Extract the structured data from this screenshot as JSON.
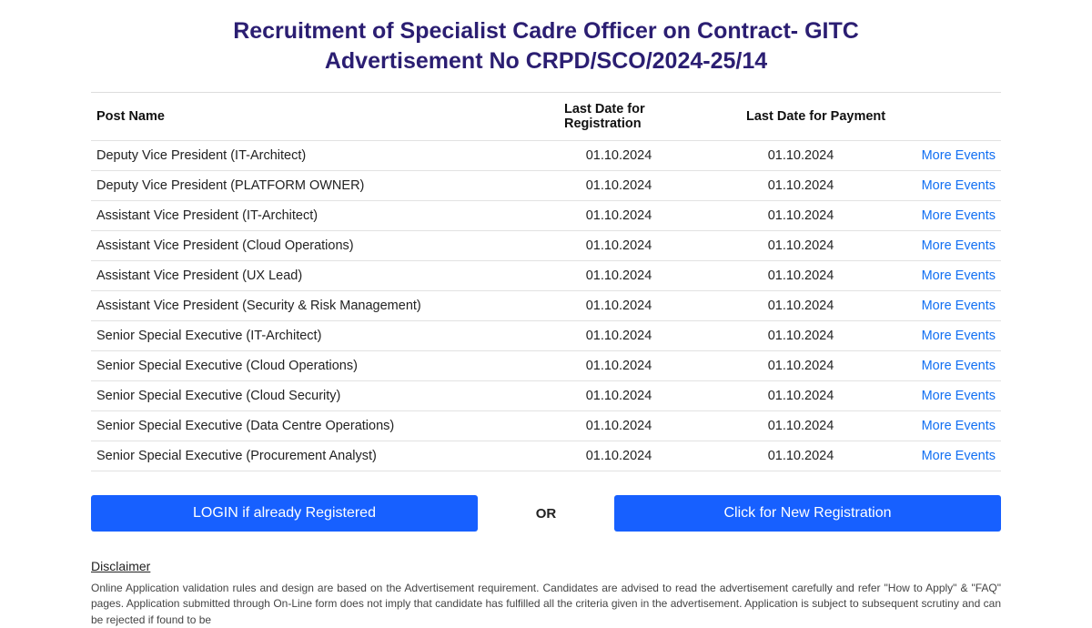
{
  "title_line1": "Recruitment of Specialist Cadre Officer on Contract- GITC",
  "title_line2": "Advertisement No CRPD/SCO/2024-25/14",
  "columns": {
    "post": "Post Name",
    "reg": "Last Date for Registration",
    "pay": "Last Date for Payment"
  },
  "more_label": "More Events",
  "rows": [
    {
      "post": "Deputy Vice President (IT-Architect)",
      "reg": "01.10.2024",
      "pay": "01.10.2024"
    },
    {
      "post": "Deputy Vice President (PLATFORM OWNER)",
      "reg": "01.10.2024",
      "pay": "01.10.2024"
    },
    {
      "post": "Assistant Vice President (IT-Architect)",
      "reg": "01.10.2024",
      "pay": "01.10.2024"
    },
    {
      "post": "Assistant Vice President (Cloud Operations)",
      "reg": "01.10.2024",
      "pay": "01.10.2024"
    },
    {
      "post": "Assistant Vice President (UX Lead)",
      "reg": "01.10.2024",
      "pay": "01.10.2024"
    },
    {
      "post": "Assistant Vice President (Security & Risk Management)",
      "reg": "01.10.2024",
      "pay": "01.10.2024"
    },
    {
      "post": "Senior Special Executive (IT-Architect)",
      "reg": "01.10.2024",
      "pay": "01.10.2024"
    },
    {
      "post": "Senior Special Executive (Cloud Operations)",
      "reg": "01.10.2024",
      "pay": "01.10.2024"
    },
    {
      "post": "Senior Special Executive (Cloud Security)",
      "reg": "01.10.2024",
      "pay": "01.10.2024"
    },
    {
      "post": "Senior Special Executive (Data Centre Operations)",
      "reg": "01.10.2024",
      "pay": "01.10.2024"
    },
    {
      "post": "Senior Special Executive (Procurement Analyst)",
      "reg": "01.10.2024",
      "pay": "01.10.2024"
    }
  ],
  "buttons": {
    "login": "LOGIN if already Registered",
    "or": "OR",
    "new": "Click for New Registration"
  },
  "disclaimer": {
    "title": "Disclaimer",
    "text": "Online Application validation rules and design are based on the Advertisement requirement. Candidates are advised to read the advertisement carefully and refer \"How to Apply\" & \"FAQ\" pages. Application submitted through On-Line form does not imply that candidate has fulfilled all the criteria given in the advertisement. Application is subject to subsequent scrutiny and can be rejected if found to be"
  }
}
